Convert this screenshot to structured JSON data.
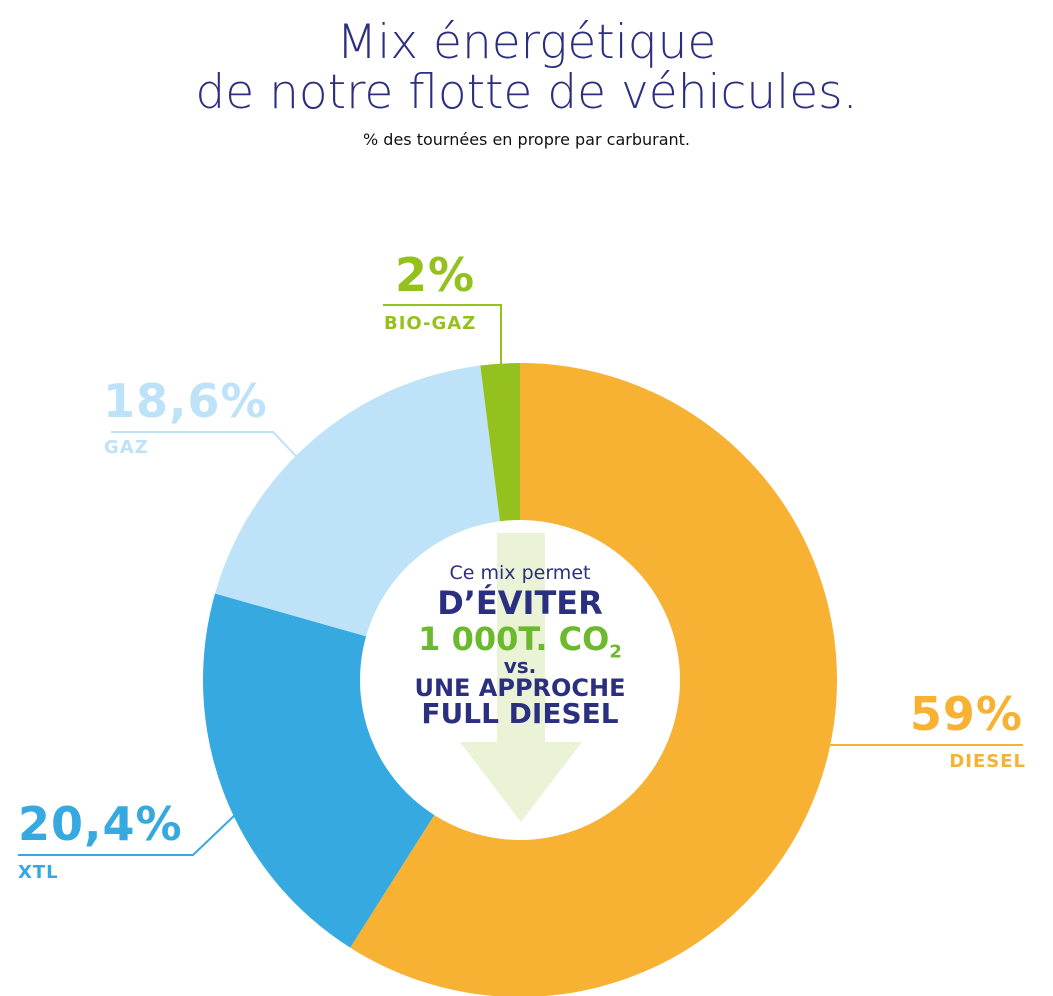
{
  "header": {
    "title_line1": "Mix énergétique",
    "title_line2": "de notre flotte de véhicules.",
    "subtitle": "% des tournées en propre par carburant."
  },
  "chart_data": {
    "type": "pie",
    "donut": true,
    "start": "top",
    "direction": "clockwise",
    "slices": [
      {
        "name": "DIESEL",
        "label": "59%",
        "value": 59,
        "color": "#F7B133"
      },
      {
        "name": "XTL",
        "label": "20,4%",
        "value": 20.4,
        "color": "#36A9E1"
      },
      {
        "name": "GAZ",
        "label": "18,6%",
        "value": 18.6,
        "color": "#BEE3F8"
      },
      {
        "name": "BIO-GAZ",
        "label": "2%",
        "value": 2,
        "color": "#95C11F"
      }
    ]
  },
  "center": {
    "line1": "Ce mix permet",
    "line2": "D’ÉVITER",
    "line3": "1 000T. CO",
    "line3_sub": "2",
    "line4": "vs.",
    "line5": "UNE APPROCHE",
    "line6": "FULL DIESEL",
    "arrow_color": "#EAF3D5",
    "text_color": "#2B2F80",
    "accent_color": "#6DB92D"
  }
}
